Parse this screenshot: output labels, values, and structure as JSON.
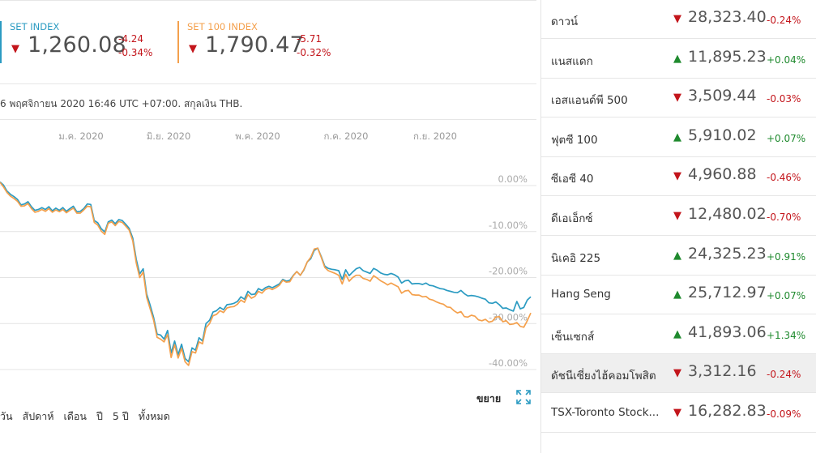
{
  "indices": [
    {
      "name": "SET INDEX",
      "value": "1,260.08",
      "change": "-4.24",
      "change_pct": "-0.34%",
      "direction": "down",
      "color": "#2b9bc2"
    },
    {
      "name": "SET 100 INDEX",
      "value": "1,790.47",
      "change": "-5.71",
      "change_pct": "-0.32%",
      "direction": "down",
      "color": "#f4a04c"
    }
  ],
  "as_of": "6 พฤศจิกายน 2020 16:46 UTC +07:00. สกุลเงิน THB.",
  "expand_label": "ขยาย",
  "ranges": [
    "วัน",
    "สัปดาห์",
    "เดือน",
    "ปี",
    "5 ปี",
    "ทั้งหมด"
  ],
  "markets": [
    {
      "name": "ดาวน์",
      "value": "28,323.40",
      "pct": "-0.24%",
      "dir": "down"
    },
    {
      "name": "แนสแดก",
      "value": "11,895.23",
      "pct": "+0.04%",
      "dir": "up"
    },
    {
      "name": "เอสแอนด์พี 500",
      "value": "3,509.44",
      "pct": "-0.03%",
      "dir": "down"
    },
    {
      "name": "ฟุตซี 100",
      "value": "5,910.02",
      "pct": "+0.07%",
      "dir": "up"
    },
    {
      "name": "ซีเอซี 40",
      "value": "4,960.88",
      "pct": "-0.46%",
      "dir": "down"
    },
    {
      "name": "ดีเอเอ็กซ์",
      "value": "12,480.02",
      "pct": "-0.70%",
      "dir": "down"
    },
    {
      "name": "นิเคอิ 225",
      "value": "24,325.23",
      "pct": "+0.91%",
      "dir": "up"
    },
    {
      "name": "Hang Seng",
      "value": "25,712.97",
      "pct": "+0.07%",
      "dir": "up"
    },
    {
      "name": "เซ็นเซกส์",
      "value": "41,893.06",
      "pct": "+1.34%",
      "dir": "up"
    },
    {
      "name": "ดัชนีเซี่ยงไฮ้คอมโพสิต",
      "value": "3,312.16",
      "pct": "-0.24%",
      "dir": "down",
      "highlight": true
    },
    {
      "name": "TSX-Toronto Stock...",
      "value": "16,282.83",
      "pct": "-0.09%",
      "dir": "down"
    }
  ],
  "chart_data": {
    "type": "line",
    "x_tick_labels": [
      "ม.ค. 2020",
      "มิ.ย. 2020",
      "พ.ค. 2020",
      "ก.ค. 2020",
      "ก.ย. 2020"
    ],
    "y_tick_labels": [
      "0.00%",
      "-10.00%",
      "-20.00%",
      "-30.00%",
      "-40.00%"
    ],
    "ylim": [
      -40,
      0
    ],
    "grid": true,
    "series": [
      {
        "color": "#2b9bc2",
        "values": [
          0.8,
          0.1,
          -1.2,
          -1.9,
          -2.4,
          -3.0,
          -4.2,
          -4.0,
          -3.5,
          -4.6,
          -5.4,
          -5.2,
          -4.8,
          -5.2,
          -4.6,
          -5.5,
          -4.9,
          -5.4,
          -4.8,
          -5.6,
          -5.0,
          -4.5,
          -5.7,
          -5.6,
          -5.0,
          -4.0,
          -4.1,
          -7.6,
          -8.1,
          -9.4,
          -10.1,
          -7.9,
          -7.5,
          -8.3,
          -7.4,
          -7.6,
          -8.4,
          -9.3,
          -11.4,
          -16.0,
          -19.2,
          -18.1,
          -23.6,
          -26.0,
          -28.7,
          -32.3,
          -32.5,
          -33.4,
          -31.5,
          -36.4,
          -33.8,
          -36.8,
          -34.5,
          -37.6,
          -38.3,
          -35.3,
          -35.8,
          -33.1,
          -33.8,
          -30.0,
          -29.3,
          -27.5,
          -27.2,
          -26.5,
          -27.0,
          -25.9,
          -25.8,
          -25.6,
          -25.2,
          -24.2,
          -24.7,
          -23.0,
          -23.7,
          -23.6,
          -22.4,
          -22.8,
          -22.2,
          -21.9,
          -22.2,
          -21.8,
          -21.4,
          -20.4,
          -20.8,
          -20.6,
          -19.5,
          -18.7,
          -19.5,
          -18.4,
          -16.6,
          -15.9,
          -14.1,
          -13.6,
          -15.4,
          -17.5,
          -18.0,
          -18.2,
          -18.3,
          -18.5,
          -20.4,
          -18.3,
          -19.6,
          -18.8,
          -18.1,
          -17.8,
          -18.5,
          -18.8,
          -19.1,
          -18.0,
          -18.4,
          -19.0,
          -19.3,
          -19.4,
          -19.1,
          -19.4,
          -19.9,
          -21.2,
          -20.7,
          -20.6,
          -21.4,
          -21.3,
          -21.3,
          -21.5,
          -21.2,
          -21.7,
          -21.8,
          -22.1,
          -22.4,
          -22.5,
          -22.8,
          -23.0,
          -23.2,
          -23.3,
          -22.8,
          -23.5,
          -24.0,
          -23.9,
          -24.0,
          -24.2,
          -24.5,
          -24.7,
          -25.5,
          -25.6,
          -25.3,
          -25.9,
          -26.7,
          -26.6,
          -27.0,
          -27.3,
          -25.2,
          -26.8,
          -26.5,
          -24.9,
          -24.2
        ],
        "name": ""
      },
      {
        "color": "#f4a04c",
        "values": [
          0.7,
          -0.3,
          -1.5,
          -2.3,
          -2.8,
          -3.4,
          -4.5,
          -4.4,
          -3.9,
          -5.0,
          -5.8,
          -5.6,
          -5.2,
          -5.6,
          -5.0,
          -5.8,
          -5.3,
          -5.7,
          -5.2,
          -5.9,
          -5.4,
          -4.9,
          -6.0,
          -6.0,
          -5.3,
          -4.5,
          -4.6,
          -8.0,
          -8.6,
          -9.9,
          -10.6,
          -8.2,
          -7.9,
          -8.7,
          -7.8,
          -8.0,
          -8.8,
          -9.7,
          -12.0,
          -16.8,
          -20.0,
          -18.8,
          -24.3,
          -26.8,
          -29.3,
          -33.0,
          -33.4,
          -34.0,
          -32.4,
          -37.4,
          -34.6,
          -37.5,
          -35.4,
          -38.3,
          -39.1,
          -36.1,
          -36.4,
          -34.0,
          -34.4,
          -30.9,
          -30.0,
          -28.3,
          -28.0,
          -27.2,
          -27.6,
          -26.6,
          -26.4,
          -26.3,
          -25.8,
          -24.9,
          -25.4,
          -23.7,
          -24.5,
          -24.1,
          -23.0,
          -23.4,
          -22.6,
          -22.3,
          -22.6,
          -22.2,
          -21.7,
          -20.6,
          -21.0,
          -20.9,
          -19.6,
          -18.7,
          -19.5,
          -18.3,
          -16.6,
          -15.6,
          -13.8,
          -13.6,
          -15.6,
          -17.8,
          -18.5,
          -18.8,
          -19.1,
          -19.5,
          -21.4,
          -19.3,
          -20.8,
          -20.0,
          -19.5,
          -19.5,
          -20.2,
          -20.4,
          -20.8,
          -19.6,
          -20.1,
          -20.7,
          -21.1,
          -21.6,
          -21.2,
          -21.6,
          -22.0,
          -23.4,
          -22.9,
          -22.8,
          -23.7,
          -23.8,
          -23.8,
          -24.2,
          -24.1,
          -24.7,
          -24.9,
          -25.3,
          -25.6,
          -25.8,
          -26.4,
          -26.5,
          -27.2,
          -27.7,
          -27.4,
          -28.5,
          -28.6,
          -28.2,
          -28.4,
          -29.2,
          -29.4,
          -29.1,
          -29.7,
          -29.5,
          -28.6,
          -28.5,
          -29.6,
          -29.4,
          -30.2,
          -30.1,
          -29.8,
          -30.6,
          -30.8,
          -29.4,
          -27.7
        ],
        "name": ""
      }
    ]
  }
}
